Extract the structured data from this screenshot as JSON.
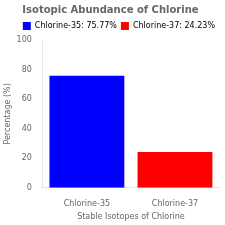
{
  "chart_data": {
    "type": "bar",
    "title": "Isotopic Abundance of Chlorine",
    "xlabel": "Stable Isotopes of Chlorine",
    "ylabel": "Percentage (%)",
    "categories": [
      "Chlorine-35",
      "Chlorine-37"
    ],
    "values": [
      75.77,
      24.23
    ],
    "colors": [
      "#0000ff",
      "#ff0000"
    ],
    "legend_labels": [
      "Chlorine-35: 75.77%",
      "Chlorine-37: 24.23%"
    ],
    "legend": "upper right",
    "ylim": [
      0,
      100
    ],
    "yticks": [
      0,
      20,
      40,
      60,
      80,
      100
    ],
    "grid": false
  }
}
